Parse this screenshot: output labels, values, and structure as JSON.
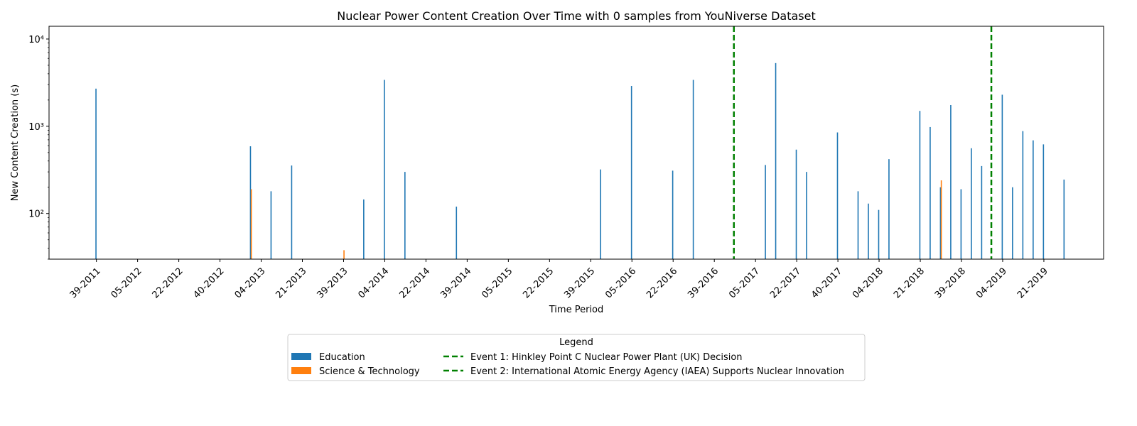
{
  "chart_data": {
    "type": "bar",
    "title": "Nuclear Power Content Creation Over Time with 0 samples from YouNiverse Dataset",
    "xlabel": "Time Period",
    "ylabel": "New Content Creation (s)",
    "yscale": "log",
    "ylim": [
      30,
      14000
    ],
    "y_ticks": [
      {
        "value": 100,
        "label": "10²"
      },
      {
        "value": 1000,
        "label": "10³"
      },
      {
        "value": 10000,
        "label": "10⁴"
      }
    ],
    "x_ticks": [
      "39-2011",
      "05-2012",
      "22-2012",
      "40-2012",
      "04-2013",
      "21-2013",
      "39-2013",
      "04-2014",
      "22-2014",
      "39-2014",
      "05-2015",
      "22-2015",
      "39-2015",
      "05-2016",
      "22-2016",
      "39-2016",
      "05-2017",
      "22-2017",
      "40-2017",
      "04-2018",
      "21-2018",
      "39-2018",
      "04-2019",
      "21-2019"
    ],
    "x_tick_index": [
      0,
      4,
      8,
      12,
      16,
      20,
      24,
      28,
      32,
      36,
      40,
      44,
      48,
      52,
      56,
      60,
      64,
      68,
      72,
      76,
      80,
      84,
      88,
      92
    ],
    "x_range": [
      -4.6,
      97.8
    ],
    "colors": {
      "Education": "#1f77b4",
      "Science & Technology": "#ff7f0e",
      "events": "#008000"
    },
    "series": [
      {
        "name": "Education",
        "color": "#1f77b4",
        "points": [
          {
            "x": 0,
            "y": 2700
          },
          {
            "x": 15,
            "y": 590
          },
          {
            "x": 17,
            "y": 180
          },
          {
            "x": 19,
            "y": 355
          },
          {
            "x": 26,
            "y": 145
          },
          {
            "x": 28,
            "y": 3400
          },
          {
            "x": 30,
            "y": 300
          },
          {
            "x": 35,
            "y": 120
          },
          {
            "x": 49,
            "y": 320
          },
          {
            "x": 52,
            "y": 2900
          },
          {
            "x": 56,
            "y": 310
          },
          {
            "x": 58,
            "y": 3400
          },
          {
            "x": 65,
            "y": 360
          },
          {
            "x": 66,
            "y": 5300
          },
          {
            "x": 68,
            "y": 540
          },
          {
            "x": 69,
            "y": 300
          },
          {
            "x": 72,
            "y": 850
          },
          {
            "x": 74,
            "y": 180
          },
          {
            "x": 75,
            "y": 130
          },
          {
            "x": 76,
            "y": 110
          },
          {
            "x": 77,
            "y": 420
          },
          {
            "x": 80,
            "y": 1500
          },
          {
            "x": 81,
            "y": 980
          },
          {
            "x": 82,
            "y": 200
          },
          {
            "x": 83,
            "y": 1750
          },
          {
            "x": 84,
            "y": 190
          },
          {
            "x": 85,
            "y": 560
          },
          {
            "x": 86,
            "y": 350
          },
          {
            "x": 88,
            "y": 2300
          },
          {
            "x": 89,
            "y": 200
          },
          {
            "x": 90,
            "y": 880
          },
          {
            "x": 91,
            "y": 690
          },
          {
            "x": 92,
            "y": 620
          },
          {
            "x": 94,
            "y": 245
          }
        ]
      },
      {
        "name": "Science & Technology",
        "color": "#ff7f0e",
        "points": [
          {
            "x": 15,
            "y": 190
          },
          {
            "x": 24,
            "y": 38
          },
          {
            "x": 82,
            "y": 240
          }
        ]
      }
    ],
    "events": [
      {
        "label": "Event 1: Hinkley Point C Nuclear Power Plant (UK) Decision",
        "x": 61.9
      },
      {
        "label": "Event 2: International Atomic Energy Agency (IAEA) Supports Nuclear Innovation",
        "x": 86.9
      }
    ],
    "legend": {
      "title": "Legend",
      "placement": "below center",
      "items": [
        {
          "label": "Education",
          "kind": "patch",
          "color": "#1f77b4"
        },
        {
          "label": "Science & Technology",
          "kind": "patch",
          "color": "#ff7f0e"
        },
        {
          "label": "Event 1: Hinkley Point C Nuclear Power Plant (UK) Decision",
          "kind": "dashed-line",
          "color": "#008000"
        },
        {
          "label": "Event 2: International Atomic Energy Agency (IAEA) Supports Nuclear Innovation",
          "kind": "dashed-line",
          "color": "#008000"
        }
      ]
    },
    "grid": false
  }
}
